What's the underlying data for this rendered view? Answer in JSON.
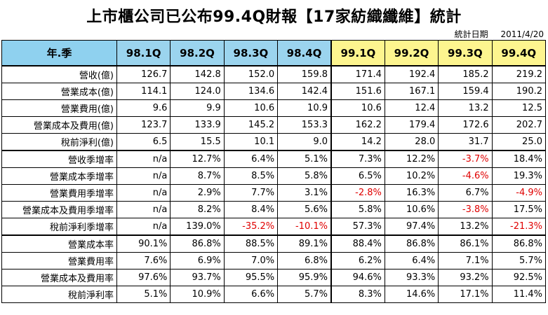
{
  "title": "上市櫃公司已公布99.4Q財報【17家紡織纖維】統計",
  "date_label": "統計日期",
  "date_value": "2011/4/20",
  "header_label": "年.季",
  "quarters": [
    "98.1Q",
    "98.2Q",
    "98.3Q",
    "98.4Q",
    "99.1Q",
    "99.2Q",
    "99.3Q",
    "99.4Q"
  ],
  "rows": [
    {
      "label": "營收(億)",
      "values": [
        "126.7",
        "142.8",
        "152.0",
        "159.8",
        "171.4",
        "192.4",
        "185.2",
        "219.2"
      ]
    },
    {
      "label": "營業成本(億)",
      "values": [
        "114.1",
        "124.0",
        "134.6",
        "142.4",
        "151.6",
        "167.1",
        "159.4",
        "190.2"
      ]
    },
    {
      "label": "營業費用(億)",
      "values": [
        "9.6",
        "9.9",
        "10.6",
        "10.9",
        "10.6",
        "12.4",
        "13.2",
        "12.5"
      ]
    },
    {
      "label": "營業成本及費用(億)",
      "values": [
        "123.7",
        "133.9",
        "145.2",
        "153.3",
        "162.2",
        "179.4",
        "172.6",
        "202.7"
      ]
    },
    {
      "label": "稅前淨利(億)",
      "values": [
        "6.5",
        "15.5",
        "10.1",
        "9.0",
        "14.2",
        "28.0",
        "31.7",
        "25.0"
      ]
    },
    {
      "label": "營收季增率",
      "values": [
        "n/a",
        "12.7%",
        "6.4%",
        "5.1%",
        "7.3%",
        "12.2%",
        "-3.7%",
        "18.4%"
      ]
    },
    {
      "label": "營業成本季增率",
      "values": [
        "n/a",
        "8.7%",
        "8.5%",
        "5.8%",
        "6.5%",
        "10.2%",
        "-4.6%",
        "19.3%"
      ]
    },
    {
      "label": "營業費用季增率",
      "values": [
        "n/a",
        "2.9%",
        "7.7%",
        "3.1%",
        "-2.8%",
        "16.3%",
        "6.7%",
        "-4.9%"
      ]
    },
    {
      "label": "營業成本及費用季增率",
      "values": [
        "n/a",
        "8.2%",
        "8.4%",
        "5.6%",
        "5.8%",
        "10.6%",
        "-3.8%",
        "17.5%"
      ]
    },
    {
      "label": "稅前淨利季增率",
      "values": [
        "n/a",
        "139.0%",
        "-35.2%",
        "-10.1%",
        "57.3%",
        "97.4%",
        "13.2%",
        "-21.3%"
      ]
    },
    {
      "label": "營業成本率",
      "values": [
        "90.1%",
        "86.8%",
        "88.5%",
        "89.1%",
        "88.4%",
        "86.8%",
        "86.1%",
        "86.8%"
      ]
    },
    {
      "label": "營業費用率",
      "values": [
        "7.6%",
        "6.9%",
        "7.0%",
        "6.8%",
        "6.2%",
        "6.4%",
        "7.1%",
        "5.7%"
      ]
    },
    {
      "label": "營業成本及費用率",
      "values": [
        "97.6%",
        "93.7%",
        "95.5%",
        "95.9%",
        "94.6%",
        "93.3%",
        "93.2%",
        "92.5%"
      ]
    },
    {
      "label": "稅前淨利率",
      "values": [
        "5.1%",
        "10.9%",
        "6.6%",
        "5.7%",
        "8.3%",
        "14.6%",
        "17.1%",
        "11.4%"
      ]
    }
  ],
  "colors": {
    "header_98": "#9bd4ee",
    "header_99": "#fdf58f",
    "negative": "#e00000"
  }
}
